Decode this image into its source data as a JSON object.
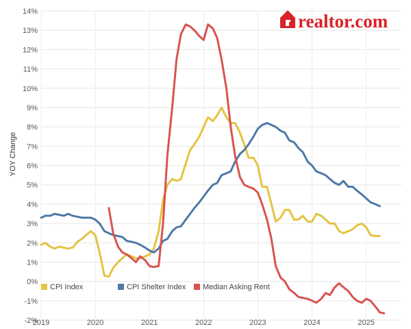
{
  "brand": {
    "logo_text": "realtor.com",
    "color": "#d92228"
  },
  "chart_data": {
    "type": "line",
    "title": "",
    "xlabel": "",
    "ylabel": "YOY Change",
    "ylim": [
      -2,
      14
    ],
    "y_ticks": [
      -2,
      -1,
      0,
      1,
      2,
      3,
      4,
      5,
      6,
      7,
      8,
      9,
      10,
      11,
      12,
      13,
      14
    ],
    "y_tick_labels": [
      "-2%",
      "-1%",
      "0%",
      "1%",
      "2%",
      "3%",
      "4%",
      "5%",
      "6%",
      "7%",
      "8%",
      "9%",
      "10%",
      "11%",
      "12%",
      "13%",
      "14%"
    ],
    "xlim": [
      2019.0,
      2025.65
    ],
    "x_ticks": [
      2019,
      2020,
      2021,
      2022,
      2023,
      2024,
      2025
    ],
    "x_tick_labels": [
      "2019",
      "2020",
      "2021",
      "2022",
      "2023",
      "2024",
      "2025"
    ],
    "grid": true,
    "legend_position": "bottom-left",
    "series": [
      {
        "name": "CPI Index",
        "color": "#e3c442",
        "points": [
          [
            2019.0,
            1.9
          ],
          [
            2019.08,
            2.0
          ],
          [
            2019.17,
            1.8
          ],
          [
            2019.25,
            1.7
          ],
          [
            2019.33,
            1.8
          ],
          [
            2019.42,
            1.75
          ],
          [
            2019.5,
            1.7
          ],
          [
            2019.58,
            1.75
          ],
          [
            2019.67,
            2.05
          ],
          [
            2019.75,
            2.2
          ],
          [
            2019.83,
            2.4
          ],
          [
            2019.92,
            2.6
          ],
          [
            2020.0,
            2.4
          ],
          [
            2020.08,
            1.5
          ],
          [
            2020.17,
            0.3
          ],
          [
            2020.25,
            0.25
          ],
          [
            2020.33,
            0.7
          ],
          [
            2020.42,
            1.0
          ],
          [
            2020.5,
            1.2
          ],
          [
            2020.58,
            1.4
          ],
          [
            2020.67,
            1.3
          ],
          [
            2020.75,
            1.2
          ],
          [
            2020.83,
            1.2
          ],
          [
            2020.92,
            1.3
          ],
          [
            2021.0,
            1.4
          ],
          [
            2021.08,
            1.7
          ],
          [
            2021.17,
            2.6
          ],
          [
            2021.25,
            4.2
          ],
          [
            2021.33,
            5.0
          ],
          [
            2021.42,
            5.3
          ],
          [
            2021.5,
            5.2
          ],
          [
            2021.58,
            5.3
          ],
          [
            2021.67,
            6.1
          ],
          [
            2021.75,
            6.8
          ],
          [
            2021.83,
            7.1
          ],
          [
            2021.92,
            7.5
          ],
          [
            2022.0,
            8.0
          ],
          [
            2022.08,
            8.5
          ],
          [
            2022.17,
            8.3
          ],
          [
            2022.25,
            8.6
          ],
          [
            2022.33,
            9.0
          ],
          [
            2022.42,
            8.5
          ],
          [
            2022.5,
            8.2
          ],
          [
            2022.58,
            8.2
          ],
          [
            2022.67,
            7.7
          ],
          [
            2022.75,
            7.1
          ],
          [
            2022.83,
            6.4
          ],
          [
            2022.92,
            6.4
          ],
          [
            2023.0,
            6.0
          ],
          [
            2023.08,
            4.9
          ],
          [
            2023.17,
            4.9
          ],
          [
            2023.25,
            4.0
          ],
          [
            2023.33,
            3.1
          ],
          [
            2023.42,
            3.3
          ],
          [
            2023.5,
            3.7
          ],
          [
            2023.58,
            3.7
          ],
          [
            2023.67,
            3.2
          ],
          [
            2023.75,
            3.2
          ],
          [
            2023.83,
            3.4
          ],
          [
            2023.92,
            3.1
          ],
          [
            2024.0,
            3.1
          ],
          [
            2024.08,
            3.5
          ],
          [
            2024.17,
            3.4
          ],
          [
            2024.25,
            3.2
          ],
          [
            2024.33,
            3.0
          ],
          [
            2024.42,
            3.0
          ],
          [
            2024.5,
            2.6
          ],
          [
            2024.58,
            2.5
          ],
          [
            2024.67,
            2.6
          ],
          [
            2024.75,
            2.7
          ],
          [
            2024.83,
            2.9
          ],
          [
            2024.92,
            3.0
          ],
          [
            2025.0,
            2.8
          ],
          [
            2025.08,
            2.4
          ],
          [
            2025.17,
            2.35
          ],
          [
            2025.25,
            2.35
          ]
        ]
      },
      {
        "name": "CPI Shelter Index",
        "color": "#4e79a7",
        "points": [
          [
            2019.0,
            3.3
          ],
          [
            2019.08,
            3.4
          ],
          [
            2019.17,
            3.4
          ],
          [
            2019.25,
            3.5
          ],
          [
            2019.33,
            3.45
          ],
          [
            2019.42,
            3.4
          ],
          [
            2019.5,
            3.5
          ],
          [
            2019.58,
            3.4
          ],
          [
            2019.67,
            3.35
          ],
          [
            2019.75,
            3.3
          ],
          [
            2019.83,
            3.3
          ],
          [
            2019.92,
            3.3
          ],
          [
            2020.0,
            3.2
          ],
          [
            2020.08,
            3.0
          ],
          [
            2020.17,
            2.6
          ],
          [
            2020.25,
            2.5
          ],
          [
            2020.33,
            2.4
          ],
          [
            2020.42,
            2.35
          ],
          [
            2020.5,
            2.3
          ],
          [
            2020.58,
            2.1
          ],
          [
            2020.67,
            2.05
          ],
          [
            2020.75,
            2.0
          ],
          [
            2020.83,
            1.9
          ],
          [
            2020.92,
            1.75
          ],
          [
            2021.0,
            1.6
          ],
          [
            2021.08,
            1.5
          ],
          [
            2021.17,
            1.7
          ],
          [
            2021.25,
            2.1
          ],
          [
            2021.33,
            2.2
          ],
          [
            2021.42,
            2.6
          ],
          [
            2021.5,
            2.8
          ],
          [
            2021.58,
            2.85
          ],
          [
            2021.67,
            3.2
          ],
          [
            2021.75,
            3.5
          ],
          [
            2021.83,
            3.8
          ],
          [
            2021.92,
            4.1
          ],
          [
            2022.0,
            4.4
          ],
          [
            2022.08,
            4.7
          ],
          [
            2022.17,
            5.0
          ],
          [
            2022.25,
            5.1
          ],
          [
            2022.33,
            5.5
          ],
          [
            2022.42,
            5.6
          ],
          [
            2022.5,
            5.7
          ],
          [
            2022.58,
            6.2
          ],
          [
            2022.67,
            6.6
          ],
          [
            2022.75,
            6.8
          ],
          [
            2022.83,
            7.1
          ],
          [
            2022.92,
            7.5
          ],
          [
            2023.0,
            7.9
          ],
          [
            2023.08,
            8.1
          ],
          [
            2023.17,
            8.2
          ],
          [
            2023.25,
            8.1
          ],
          [
            2023.33,
            8.0
          ],
          [
            2023.42,
            7.8
          ],
          [
            2023.5,
            7.7
          ],
          [
            2023.58,
            7.3
          ],
          [
            2023.67,
            7.2
          ],
          [
            2023.75,
            6.9
          ],
          [
            2023.83,
            6.7
          ],
          [
            2023.92,
            6.2
          ],
          [
            2024.0,
            6.0
          ],
          [
            2024.08,
            5.7
          ],
          [
            2024.17,
            5.6
          ],
          [
            2024.25,
            5.5
          ],
          [
            2024.33,
            5.3
          ],
          [
            2024.42,
            5.1
          ],
          [
            2024.5,
            5.0
          ],
          [
            2024.58,
            5.2
          ],
          [
            2024.67,
            4.9
          ],
          [
            2024.75,
            4.9
          ],
          [
            2024.83,
            4.7
          ],
          [
            2024.92,
            4.5
          ],
          [
            2025.0,
            4.3
          ],
          [
            2025.08,
            4.1
          ],
          [
            2025.17,
            4.0
          ],
          [
            2025.25,
            3.9
          ]
        ]
      },
      {
        "name": "Median Asking Rent",
        "color": "#d9534f",
        "points": [
          [
            2020.25,
            3.8
          ],
          [
            2020.33,
            2.5
          ],
          [
            2020.42,
            1.8
          ],
          [
            2020.5,
            1.5
          ],
          [
            2020.58,
            1.4
          ],
          [
            2020.67,
            1.2
          ],
          [
            2020.75,
            1.0
          ],
          [
            2020.83,
            1.3
          ],
          [
            2020.92,
            1.1
          ],
          [
            2021.0,
            0.8
          ],
          [
            2021.08,
            0.75
          ],
          [
            2021.17,
            0.8
          ],
          [
            2021.25,
            3.0
          ],
          [
            2021.33,
            6.5
          ],
          [
            2021.42,
            9.0
          ],
          [
            2021.5,
            11.5
          ],
          [
            2021.58,
            12.8
          ],
          [
            2021.67,
            13.3
          ],
          [
            2021.75,
            13.2
          ],
          [
            2021.83,
            13.0
          ],
          [
            2021.92,
            12.7
          ],
          [
            2022.0,
            12.5
          ],
          [
            2022.08,
            13.3
          ],
          [
            2022.17,
            13.1
          ],
          [
            2022.25,
            12.6
          ],
          [
            2022.33,
            11.5
          ],
          [
            2022.42,
            10.0
          ],
          [
            2022.5,
            8.0
          ],
          [
            2022.58,
            6.5
          ],
          [
            2022.67,
            5.4
          ],
          [
            2022.75,
            5.0
          ],
          [
            2022.83,
            4.9
          ],
          [
            2022.92,
            4.8
          ],
          [
            2023.0,
            4.6
          ],
          [
            2023.08,
            4.0
          ],
          [
            2023.17,
            3.2
          ],
          [
            2023.25,
            2.2
          ],
          [
            2023.33,
            0.8
          ],
          [
            2023.42,
            0.2
          ],
          [
            2023.5,
            0.0
          ],
          [
            2023.58,
            -0.4
          ],
          [
            2023.67,
            -0.6
          ],
          [
            2023.75,
            -0.8
          ],
          [
            2023.83,
            -0.85
          ],
          [
            2023.92,
            -0.9
          ],
          [
            2024.0,
            -1.0
          ],
          [
            2024.08,
            -1.1
          ],
          [
            2024.17,
            -0.9
          ],
          [
            2024.25,
            -0.6
          ],
          [
            2024.33,
            -0.7
          ],
          [
            2024.42,
            -0.3
          ],
          [
            2024.5,
            -0.1
          ],
          [
            2024.58,
            -0.3
          ],
          [
            2024.67,
            -0.5
          ],
          [
            2024.75,
            -0.8
          ],
          [
            2024.83,
            -1.0
          ],
          [
            2024.92,
            -1.1
          ],
          [
            2025.0,
            -0.9
          ],
          [
            2025.08,
            -1.0
          ],
          [
            2025.17,
            -1.3
          ],
          [
            2025.25,
            -1.6
          ],
          [
            2025.33,
            -1.65
          ]
        ]
      }
    ]
  }
}
